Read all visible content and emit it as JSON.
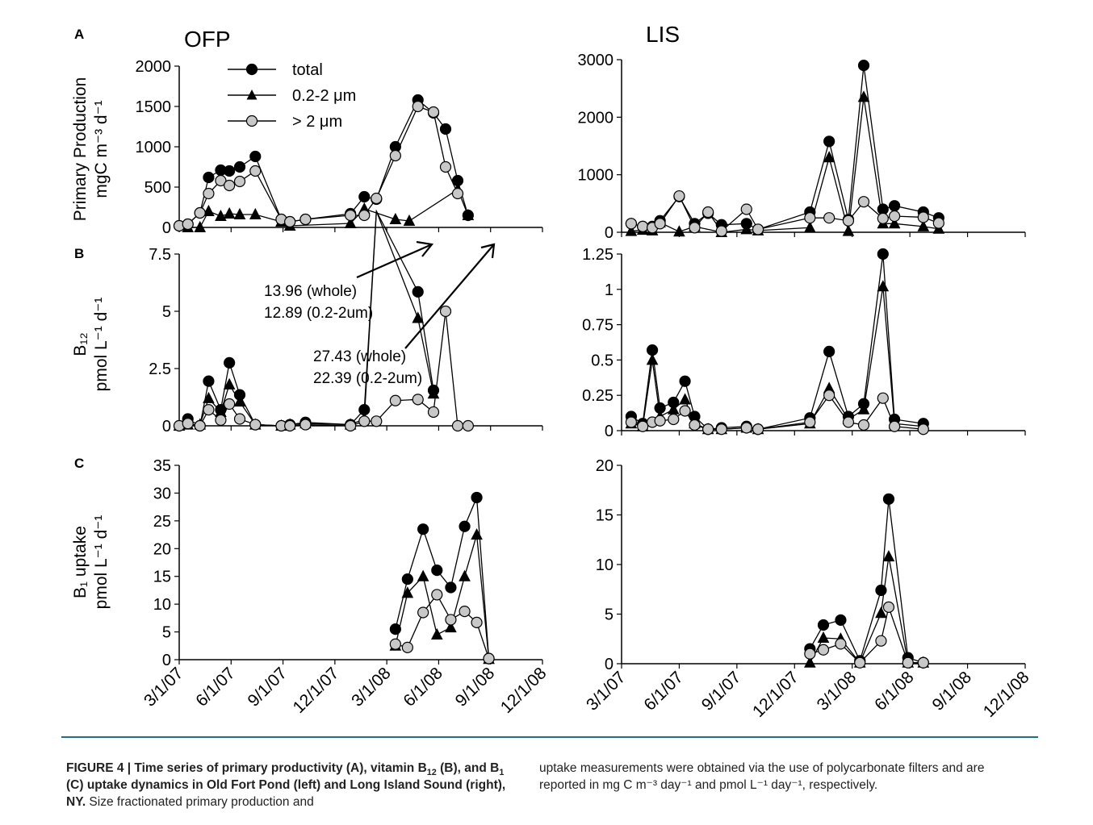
{
  "x_ticks": [
    "3/1/07",
    "6/1/07",
    "9/1/07",
    "12/1/07",
    "3/1/08",
    "6/1/08",
    "9/1/08",
    "12/1/08"
  ],
  "row_letters": [
    "A",
    "B",
    "C"
  ],
  "site_titles": [
    "OFP",
    "LIS"
  ],
  "ylabels": {
    "A": [
      "Primary Production",
      "mgC m⁻³ d⁻¹"
    ],
    "B": [
      "B₁₂",
      "pmol L⁻¹ d⁻¹"
    ],
    "C": [
      "B₁ uptake",
      "pmol L⁻¹ d⁻¹"
    ]
  },
  "legend": [
    "total",
    "0.2-2 μm",
    "> 2 μm"
  ],
  "annotations": [
    "13.96 (whole)",
    "12.89 (0.2-2um)",
    "27.43 (whole)",
    "22.39 (0.2-2um)"
  ],
  "caption": {
    "left_bold": "FIGURE 4 | Time series of primary productivity (A), vitamin B",
    "left_bold_sub1": "12",
    "left_bold_mid": " (B), and B",
    "left_bold_sub2": "1",
    "left_bold_end": " (C) uptake dynamics in Old Fort Pond (left) and Long Island Sound (right), NY.",
    "left_plain": " Size fractionated primary production and",
    "right": "uptake measurements were obtained via the use of polycarbonate filters and are reported in mg C m⁻³ day⁻¹ and pmol L⁻¹ day⁻¹, respectively."
  },
  "chart_data": [
    {
      "type": "line",
      "panel": "A",
      "site": "OFP",
      "ylim": [
        0,
        2000
      ],
      "yticks": [
        0,
        500,
        1000,
        1500,
        2000
      ],
      "series": [
        {
          "name": "total",
          "x": [
            0,
            0.5,
            1.2,
            1.7,
            2.4,
            2.9,
            3.5,
            4.4,
            5.9,
            6.4,
            7.3,
            9.9,
            10.7,
            11.4,
            12.5,
            13.8,
            14.7,
            15.4,
            16.1,
            16.7
          ],
          "y": [
            20,
            40,
            180,
            620,
            710,
            700,
            750,
            880,
            100,
            70,
            100,
            170,
            380,
            350,
            1000,
            1580,
            1420,
            1220,
            580,
            150
          ]
        },
        {
          "name": "0.2-2 μm",
          "x": [
            0.5,
            1.2,
            1.7,
            2.4,
            2.9,
            3.5,
            4.4,
            5.9,
            6.4,
            9.9,
            10.7,
            12.5,
            13.3,
            16.1,
            16.7
          ],
          "y": [
            0,
            0,
            200,
            140,
            170,
            160,
            160,
            70,
            20,
            50,
            230,
            100,
            80,
            470,
            150
          ]
        },
        {
          "name": "> 2 μm",
          "x": [
            0,
            0.5,
            1.2,
            1.7,
            2.4,
            2.9,
            3.5,
            4.4,
            5.9,
            6.4,
            7.3,
            9.9,
            10.7,
            11.4,
            12.5,
            13.8,
            14.7,
            15.4,
            16.1
          ],
          "y": [
            20,
            40,
            180,
            420,
            580,
            520,
            570,
            700,
            100,
            70,
            100,
            150,
            150,
            360,
            890,
            1500,
            1430,
            750,
            420
          ]
        }
      ]
    },
    {
      "type": "line",
      "panel": "A",
      "site": "LIS",
      "ylim": [
        0,
        3000
      ],
      "yticks": [
        0,
        1000,
        2000,
        3000
      ],
      "series": [
        {
          "name": "total",
          "x": [
            0.5,
            1.1,
            1.6,
            2.0,
            3.0,
            3.8,
            4.5,
            5.2,
            6.5,
            7.1,
            9.8,
            10.8,
            11.8,
            12.6,
            13.6,
            14.2,
            15.7,
            16.5
          ],
          "y": [
            150,
            100,
            100,
            200,
            620,
            150,
            330,
            130,
            150,
            50,
            350,
            1580,
            220,
            2900,
            400,
            460,
            350,
            250
          ]
        },
        {
          "name": "0.2-2 μm",
          "x": [
            0.5,
            1.1,
            1.6,
            2.0,
            3.0,
            3.8,
            5.2,
            6.5,
            7.1,
            9.8,
            10.8,
            11.8,
            12.6,
            13.6,
            14.2,
            15.7,
            16.5
          ],
          "y": [
            20,
            40,
            30,
            170,
            10,
            100,
            0,
            50,
            30,
            80,
            1300,
            20,
            2350,
            150,
            150,
            100,
            60
          ]
        },
        {
          "name": "> 2 μm",
          "x": [
            0.5,
            1.1,
            1.6,
            2.0,
            3.0,
            3.8,
            4.5,
            5.2,
            6.5,
            7.1,
            9.8,
            10.8,
            11.8,
            12.6,
            13.6,
            14.2,
            15.7,
            16.5
          ],
          "y": [
            150,
            100,
            80,
            150,
            630,
            80,
            350,
            20,
            400,
            50,
            250,
            250,
            200,
            530,
            240,
            280,
            260,
            160
          ]
        }
      ]
    },
    {
      "type": "line",
      "panel": "B",
      "site": "OFP",
      "ylim": [
        0,
        7.5
      ],
      "yticks": [
        0,
        2.5,
        5,
        7.5
      ],
      "series": [
        {
          "name": "total",
          "x": [
            0,
            0.5,
            1.2,
            1.7,
            2.4,
            2.9,
            3.5,
            4.4,
            5.9,
            6.4,
            7.3,
            9.9,
            10.7,
            11.4,
            13.8,
            14.7
          ],
          "y": [
            0,
            0.3,
            0,
            1.95,
            0.7,
            2.75,
            1.35,
            0.05,
            0,
            0.05,
            0.15,
            0.05,
            0.7,
            13.96,
            5.85,
            1.55
          ]
        },
        {
          "name": "0.2-2 μm",
          "x": [
            0,
            0.5,
            1.2,
            1.7,
            2.4,
            2.9,
            3.5,
            4.4,
            5.9,
            6.4,
            7.3,
            9.9,
            10.7,
            11.4,
            13.8,
            14.7
          ],
          "y": [
            0,
            0.05,
            0.05,
            1.2,
            0.6,
            1.8,
            1.05,
            0.05,
            0,
            0.05,
            0.1,
            0.05,
            0.3,
            12.89,
            4.7,
            1.4
          ]
        },
        {
          "name": "> 2 μm",
          "x": [
            0,
            0.5,
            1.2,
            1.7,
            2.4,
            2.9,
            3.5,
            4.4,
            5.9,
            6.4,
            7.3,
            9.9,
            10.7,
            11.4,
            12.5,
            13.8,
            14.7,
            15.4,
            16.1,
            16.7
          ],
          "y": [
            0,
            0.1,
            0,
            0.7,
            0.25,
            0.95,
            0.3,
            0.05,
            0,
            0,
            0.05,
            0,
            0.2,
            0.2,
            1.1,
            1.15,
            0.6,
            5.0,
            0,
            0
          ]
        }
      ]
    },
    {
      "type": "line",
      "panel": "B",
      "site": "LIS",
      "ylim": [
        0,
        1.25
      ],
      "yticks": [
        0,
        0.25,
        0.5,
        0.75,
        1,
        1.25
      ],
      "series": [
        {
          "name": "total",
          "x": [
            0.5,
            1.1,
            1.6,
            2.0,
            2.7,
            3.3,
            3.8,
            4.5,
            5.2,
            6.5,
            7.1,
            9.8,
            10.8,
            11.8,
            12.6,
            13.6,
            14.2,
            15.7
          ],
          "y": [
            0.1,
            0.05,
            0.57,
            0.16,
            0.2,
            0.35,
            0.1,
            0.01,
            0.02,
            0.03,
            0.01,
            0.09,
            0.56,
            0.1,
            0.19,
            1.25,
            0.08,
            0.05
          ]
        },
        {
          "name": "0.2-2 μm",
          "x": [
            0.5,
            1.1,
            1.6,
            2.0,
            2.7,
            3.3,
            3.8,
            4.5,
            5.2,
            6.5,
            7.1,
            9.8,
            10.8,
            11.8,
            12.6,
            13.6,
            14.2,
            15.7
          ],
          "y": [
            0.05,
            0.03,
            0.5,
            0.1,
            0.15,
            0.22,
            0.05,
            0.01,
            0.01,
            0.02,
            0.01,
            0.05,
            0.3,
            0.08,
            0.15,
            1.02,
            0.05,
            0.03
          ]
        },
        {
          "name": "> 2 μm",
          "x": [
            0.5,
            1.1,
            1.6,
            2.0,
            2.7,
            3.3,
            3.8,
            4.5,
            5.2,
            6.5,
            7.1,
            9.8,
            10.8,
            11.8,
            12.6,
            13.6,
            14.2,
            15.7
          ],
          "y": [
            0.06,
            0.03,
            0.06,
            0.07,
            0.08,
            0.14,
            0.04,
            0.01,
            0.01,
            0.02,
            0.01,
            0.06,
            0.25,
            0.06,
            0.04,
            0.23,
            0.03,
            0.01
          ]
        }
      ]
    },
    {
      "type": "line",
      "panel": "C",
      "site": "OFP",
      "ylim": [
        0,
        35
      ],
      "yticks": [
        0,
        5,
        10,
        15,
        20,
        25,
        30,
        35
      ],
      "series": [
        {
          "name": "total",
          "x": [
            12.5,
            13.2,
            14.1,
            14.9,
            15.7,
            16.5,
            17.2,
            17.9
          ],
          "y": [
            5.5,
            14.5,
            23.5,
            16.1,
            13.0,
            24.0,
            29.2,
            0.2
          ]
        },
        {
          "name": "0.2-2 μm",
          "x": [
            12.5,
            13.2,
            14.1,
            14.9,
            15.7,
            16.5,
            17.2,
            17.9
          ],
          "y": [
            2.5,
            12.0,
            15.0,
            4.5,
            5.8,
            15.0,
            22.5,
            0.1
          ]
        },
        {
          "name": "> 2 μm",
          "x": [
            12.5,
            13.2,
            14.1,
            14.9,
            15.7,
            16.5,
            17.2,
            17.9
          ],
          "y": [
            2.8,
            2.2,
            8.5,
            11.7,
            7.2,
            8.7,
            6.7,
            0.2
          ]
        }
      ]
    },
    {
      "type": "line",
      "panel": "C",
      "site": "LIS",
      "ylim": [
        0,
        20
      ],
      "yticks": [
        0,
        5,
        10,
        15,
        20
      ],
      "series": [
        {
          "name": "total",
          "x": [
            9.8,
            10.5,
            11.4,
            12.4,
            13.5,
            13.9,
            14.9,
            15.7
          ],
          "y": [
            1.5,
            3.9,
            4.4,
            0.3,
            7.4,
            16.6,
            0.6,
            0.1
          ]
        },
        {
          "name": "0.2-2 μm",
          "x": [
            9.8,
            10.5,
            11.4,
            12.4,
            13.5,
            13.9,
            14.9,
            15.7
          ],
          "y": [
            0.1,
            2.6,
            2.5,
            0.1,
            5.1,
            10.8,
            0.1,
            0.1
          ]
        },
        {
          "name": "> 2 μm",
          "x": [
            9.8,
            10.5,
            11.4,
            12.4,
            13.5,
            13.9,
            14.9,
            15.7
          ],
          "y": [
            1.0,
            1.4,
            2.0,
            0.1,
            2.3,
            5.7,
            0.1,
            0.1
          ]
        }
      ]
    }
  ],
  "colors": {
    "total": "#000000",
    "fraction_small": "#000000",
    "fraction_large": "#c8c8c8",
    "caption_rule": "#1f6f8b"
  }
}
